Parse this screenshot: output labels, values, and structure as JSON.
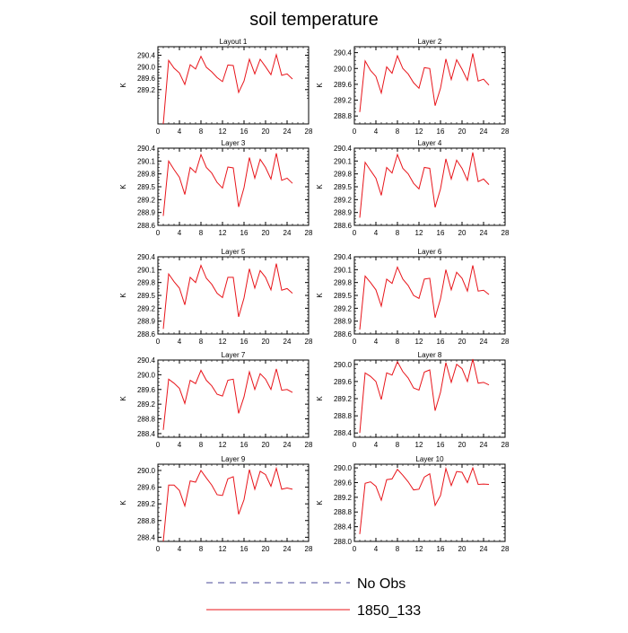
{
  "title": "soil temperature",
  "legend": {
    "items": [
      {
        "label": "No Obs",
        "color": "#4a4a9a",
        "dash": "dashed"
      },
      {
        "label": "1850_133",
        "color": "#e8141a",
        "dash": "solid"
      }
    ],
    "placement": "bottom-center"
  },
  "chart_data": [
    {
      "type": "line",
      "title": "Layout 1",
      "ylabel": "K",
      "xlim": [
        0,
        28
      ],
      "xticks": [
        0,
        4,
        8,
        12,
        16,
        20,
        24,
        28
      ],
      "ylim": [
        288.0,
        290.7
      ],
      "yticks": [
        289.2,
        289.6,
        290.0,
        290.4
      ],
      "series": [
        {
          "name": "1850_133",
          "color": "#e8141a",
          "x": [
            1,
            2,
            3,
            4,
            5,
            6,
            7,
            8,
            9,
            10,
            11,
            12,
            13,
            14,
            15,
            16,
            17,
            18,
            19,
            20,
            21,
            22,
            23,
            24,
            25
          ],
          "y": [
            288.0,
            290.22,
            289.95,
            289.78,
            289.38,
            290.07,
            289.92,
            290.36,
            289.98,
            289.82,
            289.62,
            289.48,
            290.06,
            290.04,
            289.1,
            289.5,
            290.26,
            289.75,
            290.26,
            290.0,
            289.72,
            290.42,
            289.7,
            289.75,
            289.57
          ]
        }
      ]
    },
    {
      "type": "line",
      "title": "Layer 2",
      "ylabel": "K",
      "xlim": [
        0,
        28
      ],
      "xticks": [
        0,
        4,
        8,
        12,
        16,
        20,
        24,
        28
      ],
      "ylim": [
        288.6,
        290.55
      ],
      "yticks": [
        288.8,
        289.2,
        289.6,
        290.0,
        290.4
      ],
      "series": [
        {
          "name": "1850_133",
          "color": "#e8141a",
          "x": [
            1,
            2,
            3,
            4,
            5,
            6,
            7,
            8,
            9,
            10,
            11,
            12,
            13,
            14,
            15,
            16,
            17,
            18,
            19,
            20,
            21,
            22,
            23,
            24,
            25
          ],
          "y": [
            288.9,
            290.19,
            289.95,
            289.8,
            289.38,
            290.04,
            289.88,
            290.32,
            290.0,
            289.86,
            289.64,
            289.5,
            290.02,
            290.0,
            289.06,
            289.5,
            290.24,
            289.72,
            290.22,
            289.98,
            289.7,
            290.38,
            289.68,
            289.73,
            289.58
          ]
        }
      ]
    },
    {
      "type": "line",
      "title": "Layer 3",
      "ylabel": "K",
      "xlim": [
        0,
        28
      ],
      "xticks": [
        0,
        4,
        8,
        12,
        16,
        20,
        24,
        28
      ],
      "ylim": [
        288.6,
        290.4
      ],
      "yticks": [
        288.6,
        288.9,
        289.2,
        289.5,
        289.8,
        290.1,
        290.4
      ],
      "series": [
        {
          "name": "1850_133",
          "color": "#e8141a",
          "x": [
            1,
            2,
            3,
            4,
            5,
            6,
            7,
            8,
            9,
            10,
            11,
            12,
            13,
            14,
            15,
            16,
            17,
            18,
            19,
            20,
            21,
            22,
            23,
            24,
            25
          ],
          "y": [
            288.82,
            290.1,
            289.9,
            289.72,
            289.32,
            289.95,
            289.83,
            290.25,
            289.95,
            289.82,
            289.6,
            289.47,
            289.96,
            289.94,
            289.03,
            289.48,
            290.18,
            289.7,
            290.14,
            289.95,
            289.68,
            290.28,
            289.65,
            289.7,
            289.58
          ]
        }
      ]
    },
    {
      "type": "line",
      "title": "Layer 4",
      "ylabel": "K",
      "xlim": [
        0,
        28
      ],
      "xticks": [
        0,
        4,
        8,
        12,
        16,
        20,
        24,
        28
      ],
      "ylim": [
        288.6,
        290.4
      ],
      "yticks": [
        288.6,
        288.9,
        289.2,
        289.5,
        289.8,
        290.1,
        290.4
      ],
      "series": [
        {
          "name": "1850_133",
          "color": "#e8141a",
          "x": [
            1,
            2,
            3,
            4,
            5,
            6,
            7,
            8,
            9,
            10,
            11,
            12,
            13,
            14,
            15,
            16,
            17,
            18,
            19,
            20,
            21,
            22,
            23,
            24,
            25
          ],
          "y": [
            288.78,
            290.07,
            289.88,
            289.7,
            289.3,
            289.95,
            289.82,
            290.25,
            289.93,
            289.8,
            289.58,
            289.45,
            289.95,
            289.93,
            289.02,
            289.45,
            290.15,
            289.68,
            290.12,
            289.93,
            289.65,
            290.3,
            289.62,
            289.68,
            289.55
          ]
        }
      ]
    },
    {
      "type": "line",
      "title": "Layer 5",
      "ylabel": "K",
      "xlim": [
        0,
        28
      ],
      "xticks": [
        0,
        4,
        8,
        12,
        16,
        20,
        24,
        28
      ],
      "ylim": [
        288.6,
        290.4
      ],
      "yticks": [
        288.6,
        288.9,
        289.2,
        289.5,
        289.8,
        290.1,
        290.4
      ],
      "series": [
        {
          "name": "1850_133",
          "color": "#e8141a",
          "x": [
            1,
            2,
            3,
            4,
            5,
            6,
            7,
            8,
            9,
            10,
            11,
            12,
            13,
            14,
            15,
            16,
            17,
            18,
            19,
            20,
            21,
            22,
            23,
            24,
            25
          ],
          "y": [
            288.72,
            290.0,
            289.82,
            289.67,
            289.28,
            289.92,
            289.8,
            290.2,
            289.9,
            289.76,
            289.55,
            289.45,
            289.92,
            289.92,
            289.0,
            289.44,
            290.12,
            289.67,
            290.08,
            289.92,
            289.63,
            290.24,
            289.62,
            289.66,
            289.55
          ]
        }
      ]
    },
    {
      "type": "line",
      "title": "Layer 6",
      "ylabel": "K",
      "xlim": [
        0,
        28
      ],
      "xticks": [
        0,
        4,
        8,
        12,
        16,
        20,
        24,
        28
      ],
      "ylim": [
        288.6,
        290.4
      ],
      "yticks": [
        288.6,
        288.9,
        289.2,
        289.5,
        289.8,
        290.1,
        290.4
      ],
      "series": [
        {
          "name": "1850_133",
          "color": "#e8141a",
          "x": [
            1,
            2,
            3,
            4,
            5,
            6,
            7,
            8,
            9,
            10,
            11,
            12,
            13,
            14,
            15,
            16,
            17,
            18,
            19,
            20,
            21,
            22,
            23,
            24,
            25
          ],
          "y": [
            288.7,
            289.95,
            289.8,
            289.63,
            289.25,
            289.88,
            289.78,
            290.16,
            289.88,
            289.73,
            289.5,
            289.43,
            289.88,
            289.9,
            288.98,
            289.42,
            290.1,
            289.63,
            290.04,
            289.9,
            289.6,
            290.2,
            289.6,
            289.62,
            289.52
          ]
        }
      ]
    },
    {
      "type": "line",
      "title": "Layer 7",
      "ylabel": "K",
      "xlim": [
        0,
        28
      ],
      "xticks": [
        0,
        4,
        8,
        12,
        16,
        20,
        24,
        28
      ],
      "ylim": [
        288.3,
        290.4
      ],
      "yticks": [
        288.4,
        288.8,
        289.2,
        289.6,
        290.0,
        290.4
      ],
      "series": [
        {
          "name": "1850_133",
          "color": "#e8141a",
          "x": [
            1,
            2,
            3,
            4,
            5,
            6,
            7,
            8,
            9,
            10,
            11,
            12,
            13,
            14,
            15,
            16,
            17,
            18,
            19,
            20,
            21,
            22,
            23,
            24,
            25
          ],
          "y": [
            288.5,
            289.88,
            289.77,
            289.63,
            289.22,
            289.85,
            289.76,
            290.12,
            289.85,
            289.7,
            289.47,
            289.42,
            289.85,
            289.88,
            288.95,
            289.4,
            290.08,
            289.6,
            290.03,
            289.88,
            289.6,
            290.16,
            289.58,
            289.6,
            289.52
          ]
        }
      ]
    },
    {
      "type": "line",
      "title": "Layer 8",
      "ylabel": "K",
      "xlim": [
        0,
        28
      ],
      "xticks": [
        0,
        4,
        8,
        12,
        16,
        20,
        24,
        28
      ],
      "ylim": [
        288.3,
        290.1
      ],
      "yticks": [
        288.4,
        288.8,
        289.2,
        289.6,
        290.0
      ],
      "series": [
        {
          "name": "1850_133",
          "color": "#e8141a",
          "x": [
            1,
            2,
            3,
            4,
            5,
            6,
            7,
            8,
            9,
            10,
            11,
            12,
            13,
            14,
            15,
            16,
            17,
            18,
            19,
            20,
            21,
            22,
            23,
            24,
            25
          ],
          "y": [
            288.4,
            289.8,
            289.72,
            289.6,
            289.18,
            289.8,
            289.75,
            290.06,
            289.83,
            289.68,
            289.45,
            289.4,
            289.82,
            289.87,
            288.92,
            289.35,
            290.04,
            289.58,
            290.0,
            289.9,
            289.6,
            290.12,
            289.56,
            289.58,
            289.52
          ]
        }
      ]
    },
    {
      "type": "line",
      "title": "Layer 9",
      "ylabel": "K",
      "xlim": [
        0,
        28
      ],
      "xticks": [
        0,
        4,
        8,
        12,
        16,
        20,
        24,
        28
      ],
      "ylim": [
        288.3,
        290.15
      ],
      "yticks": [
        288.4,
        288.8,
        289.2,
        289.6,
        290.0
      ],
      "series": [
        {
          "name": "1850_133",
          "color": "#e8141a",
          "x": [
            1,
            2,
            3,
            4,
            5,
            6,
            7,
            8,
            9,
            10,
            11,
            12,
            13,
            14,
            15,
            16,
            17,
            18,
            19,
            20,
            21,
            22,
            23,
            24,
            25
          ],
          "y": [
            288.3,
            289.65,
            289.65,
            289.52,
            289.15,
            289.75,
            289.72,
            290.0,
            289.82,
            289.65,
            289.42,
            289.4,
            289.8,
            289.85,
            288.95,
            289.3,
            290.02,
            289.55,
            289.98,
            289.9,
            289.62,
            290.05,
            289.55,
            289.58,
            289.55
          ]
        }
      ]
    },
    {
      "type": "line",
      "title": "Layer 10",
      "ylabel": "K",
      "xlim": [
        0,
        28
      ],
      "xticks": [
        0,
        4,
        8,
        12,
        16,
        20,
        24,
        28
      ],
      "ylim": [
        288.0,
        290.1
      ],
      "yticks": [
        288.0,
        288.4,
        288.8,
        289.2,
        289.6,
        290.0
      ],
      "series": [
        {
          "name": "1850_133",
          "color": "#e8141a",
          "x": [
            1,
            2,
            3,
            4,
            5,
            6,
            7,
            8,
            9,
            10,
            11,
            12,
            13,
            14,
            15,
            16,
            17,
            18,
            19,
            20,
            21,
            22,
            23,
            24,
            25
          ],
          "y": [
            288.2,
            289.58,
            289.62,
            289.5,
            289.12,
            289.68,
            289.7,
            289.96,
            289.8,
            289.62,
            289.4,
            289.42,
            289.75,
            289.84,
            288.98,
            289.25,
            289.98,
            289.52,
            289.9,
            289.88,
            289.6,
            290.0,
            289.55,
            289.56,
            289.55
          ]
        }
      ]
    }
  ]
}
